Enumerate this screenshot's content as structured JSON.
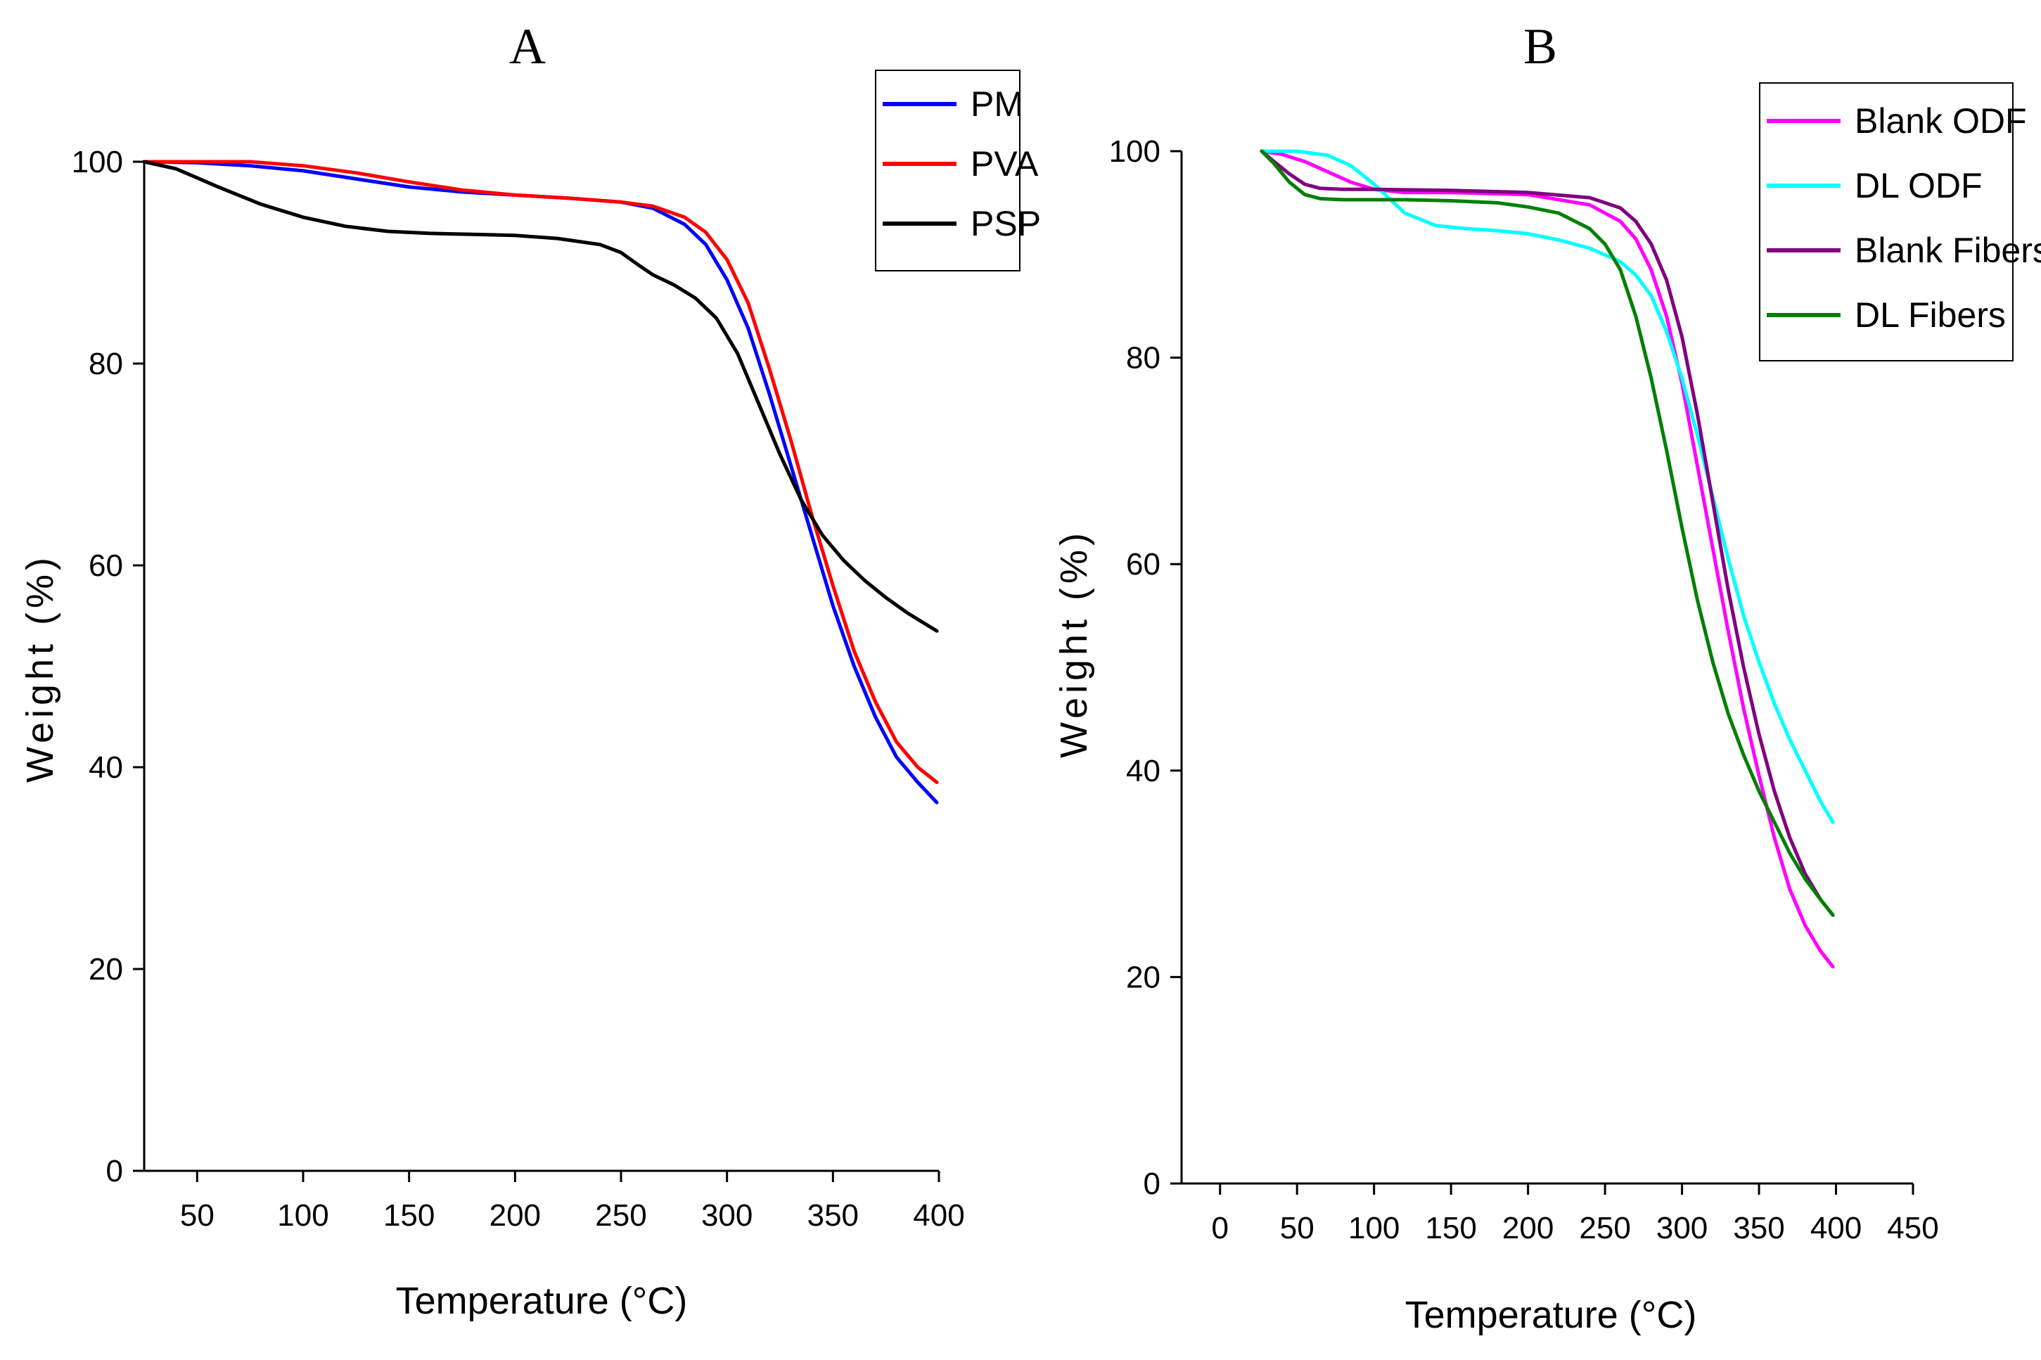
{
  "chart_data": [
    {
      "type": "line",
      "panel_label": "A",
      "xlabel": "Temperature (°C)",
      "ylabel": "Weight (%)",
      "xlim": [
        25,
        400
      ],
      "ylim": [
        0,
        100
      ],
      "xticks": [
        50,
        100,
        150,
        200,
        250,
        300,
        350,
        400
      ],
      "yticks": [
        0,
        20,
        40,
        60,
        80,
        100
      ],
      "legend_position": "top-right",
      "series": [
        {
          "name": "PM",
          "color": "#0000ff",
          "x": [
            25,
            50,
            75,
            100,
            125,
            150,
            175,
            200,
            225,
            250,
            265,
            280,
            290,
            300,
            310,
            320,
            330,
            340,
            350,
            360,
            370,
            380,
            390,
            399
          ],
          "y": [
            100,
            99.9,
            99.6,
            99.1,
            98.3,
            97.5,
            97.0,
            96.7,
            96.4,
            96.0,
            95.4,
            93.8,
            91.8,
            88.3,
            83.5,
            77.0,
            70.0,
            63.0,
            56.0,
            50.0,
            45.0,
            41.0,
            38.5,
            36.5
          ]
        },
        {
          "name": "PVA",
          "color": "#ff0000",
          "x": [
            25,
            50,
            75,
            100,
            125,
            150,
            175,
            200,
            225,
            250,
            265,
            280,
            290,
            300,
            310,
            320,
            330,
            340,
            350,
            360,
            370,
            380,
            390,
            399
          ],
          "y": [
            100,
            100,
            100,
            99.6,
            98.9,
            98.0,
            97.2,
            96.7,
            96.4,
            96.0,
            95.6,
            94.5,
            93.0,
            90.3,
            86.0,
            79.5,
            72.5,
            65.0,
            58.0,
            51.5,
            46.5,
            42.5,
            40.0,
            38.5
          ]
        },
        {
          "name": "PSP",
          "color": "#000000",
          "x": [
            25,
            40,
            60,
            80,
            100,
            120,
            140,
            160,
            180,
            200,
            220,
            240,
            250,
            258,
            265,
            275,
            285,
            295,
            305,
            315,
            325,
            335,
            345,
            355,
            365,
            375,
            385,
            399
          ],
          "y": [
            100,
            99.3,
            97.5,
            95.8,
            94.5,
            93.6,
            93.1,
            92.9,
            92.8,
            92.7,
            92.4,
            91.8,
            91.0,
            89.8,
            88.8,
            87.8,
            86.5,
            84.5,
            81.0,
            76.0,
            71.0,
            66.5,
            63.0,
            60.5,
            58.5,
            56.8,
            55.3,
            53.5
          ]
        }
      ]
    },
    {
      "type": "line",
      "panel_label": "B",
      "xlabel": "Temperature (°C)",
      "ylabel": "Weight (%)",
      "xlim": [
        -25,
        450
      ],
      "ylim": [
        0,
        100
      ],
      "xticks": [
        0,
        50,
        100,
        150,
        200,
        250,
        300,
        350,
        400,
        450
      ],
      "yticks": [
        0,
        20,
        40,
        60,
        80,
        100
      ],
      "legend_position": "top-right",
      "series": [
        {
          "name": "Blank ODF",
          "color": "#ff00ff",
          "x": [
            27,
            40,
            55,
            70,
            85,
            100,
            120,
            150,
            200,
            240,
            260,
            270,
            280,
            290,
            300,
            310,
            320,
            330,
            340,
            350,
            360,
            370,
            380,
            390,
            398
          ],
          "y": [
            100,
            99.7,
            99.0,
            98.0,
            97.0,
            96.3,
            96.0,
            96.0,
            95.8,
            94.8,
            93.2,
            91.5,
            88.5,
            84.0,
            77.5,
            69.5,
            61.5,
            53.5,
            46.0,
            39.5,
            33.5,
            28.5,
            25.0,
            22.5,
            21.0
          ]
        },
        {
          "name": "DL ODF",
          "color": "#00ffff",
          "x": [
            27,
            50,
            70,
            85,
            100,
            120,
            140,
            160,
            180,
            200,
            220,
            240,
            260,
            270,
            280,
            290,
            300,
            310,
            320,
            330,
            340,
            350,
            360,
            370,
            380,
            390,
            398
          ],
          "y": [
            100,
            100,
            99.6,
            98.6,
            96.8,
            94.0,
            92.8,
            92.5,
            92.3,
            92.0,
            91.4,
            90.6,
            89.3,
            88.0,
            86.0,
            82.5,
            78.0,
            72.5,
            66.5,
            60.5,
            55.0,
            50.5,
            46.5,
            43.0,
            40.0,
            37.0,
            35.0
          ]
        },
        {
          "name": "Blank Fibers",
          "color": "#800080",
          "x": [
            27,
            35,
            45,
            55,
            65,
            80,
            100,
            150,
            200,
            240,
            260,
            270,
            280,
            290,
            300,
            310,
            320,
            330,
            340,
            350,
            360,
            370,
            380,
            390,
            398
          ],
          "y": [
            100,
            99.0,
            97.8,
            96.8,
            96.4,
            96.3,
            96.3,
            96.2,
            96.0,
            95.5,
            94.5,
            93.2,
            91.0,
            87.5,
            82.0,
            74.5,
            66.0,
            57.5,
            50.0,
            43.5,
            38.0,
            33.5,
            30.0,
            27.5,
            26.0
          ]
        },
        {
          "name": "DL Fibers",
          "color": "#008000",
          "x": [
            27,
            35,
            45,
            55,
            65,
            80,
            100,
            120,
            150,
            180,
            200,
            220,
            240,
            250,
            260,
            270,
            280,
            290,
            300,
            310,
            320,
            330,
            340,
            350,
            360,
            370,
            380,
            390,
            398
          ],
          "y": [
            100,
            98.8,
            97.0,
            95.8,
            95.4,
            95.3,
            95.3,
            95.3,
            95.2,
            95.0,
            94.6,
            94.0,
            92.5,
            91.0,
            88.5,
            84.0,
            78.0,
            71.0,
            63.5,
            56.5,
            50.5,
            45.5,
            41.5,
            38.0,
            35.0,
            32.0,
            29.5,
            27.5,
            26.0
          ]
        }
      ]
    }
  ]
}
